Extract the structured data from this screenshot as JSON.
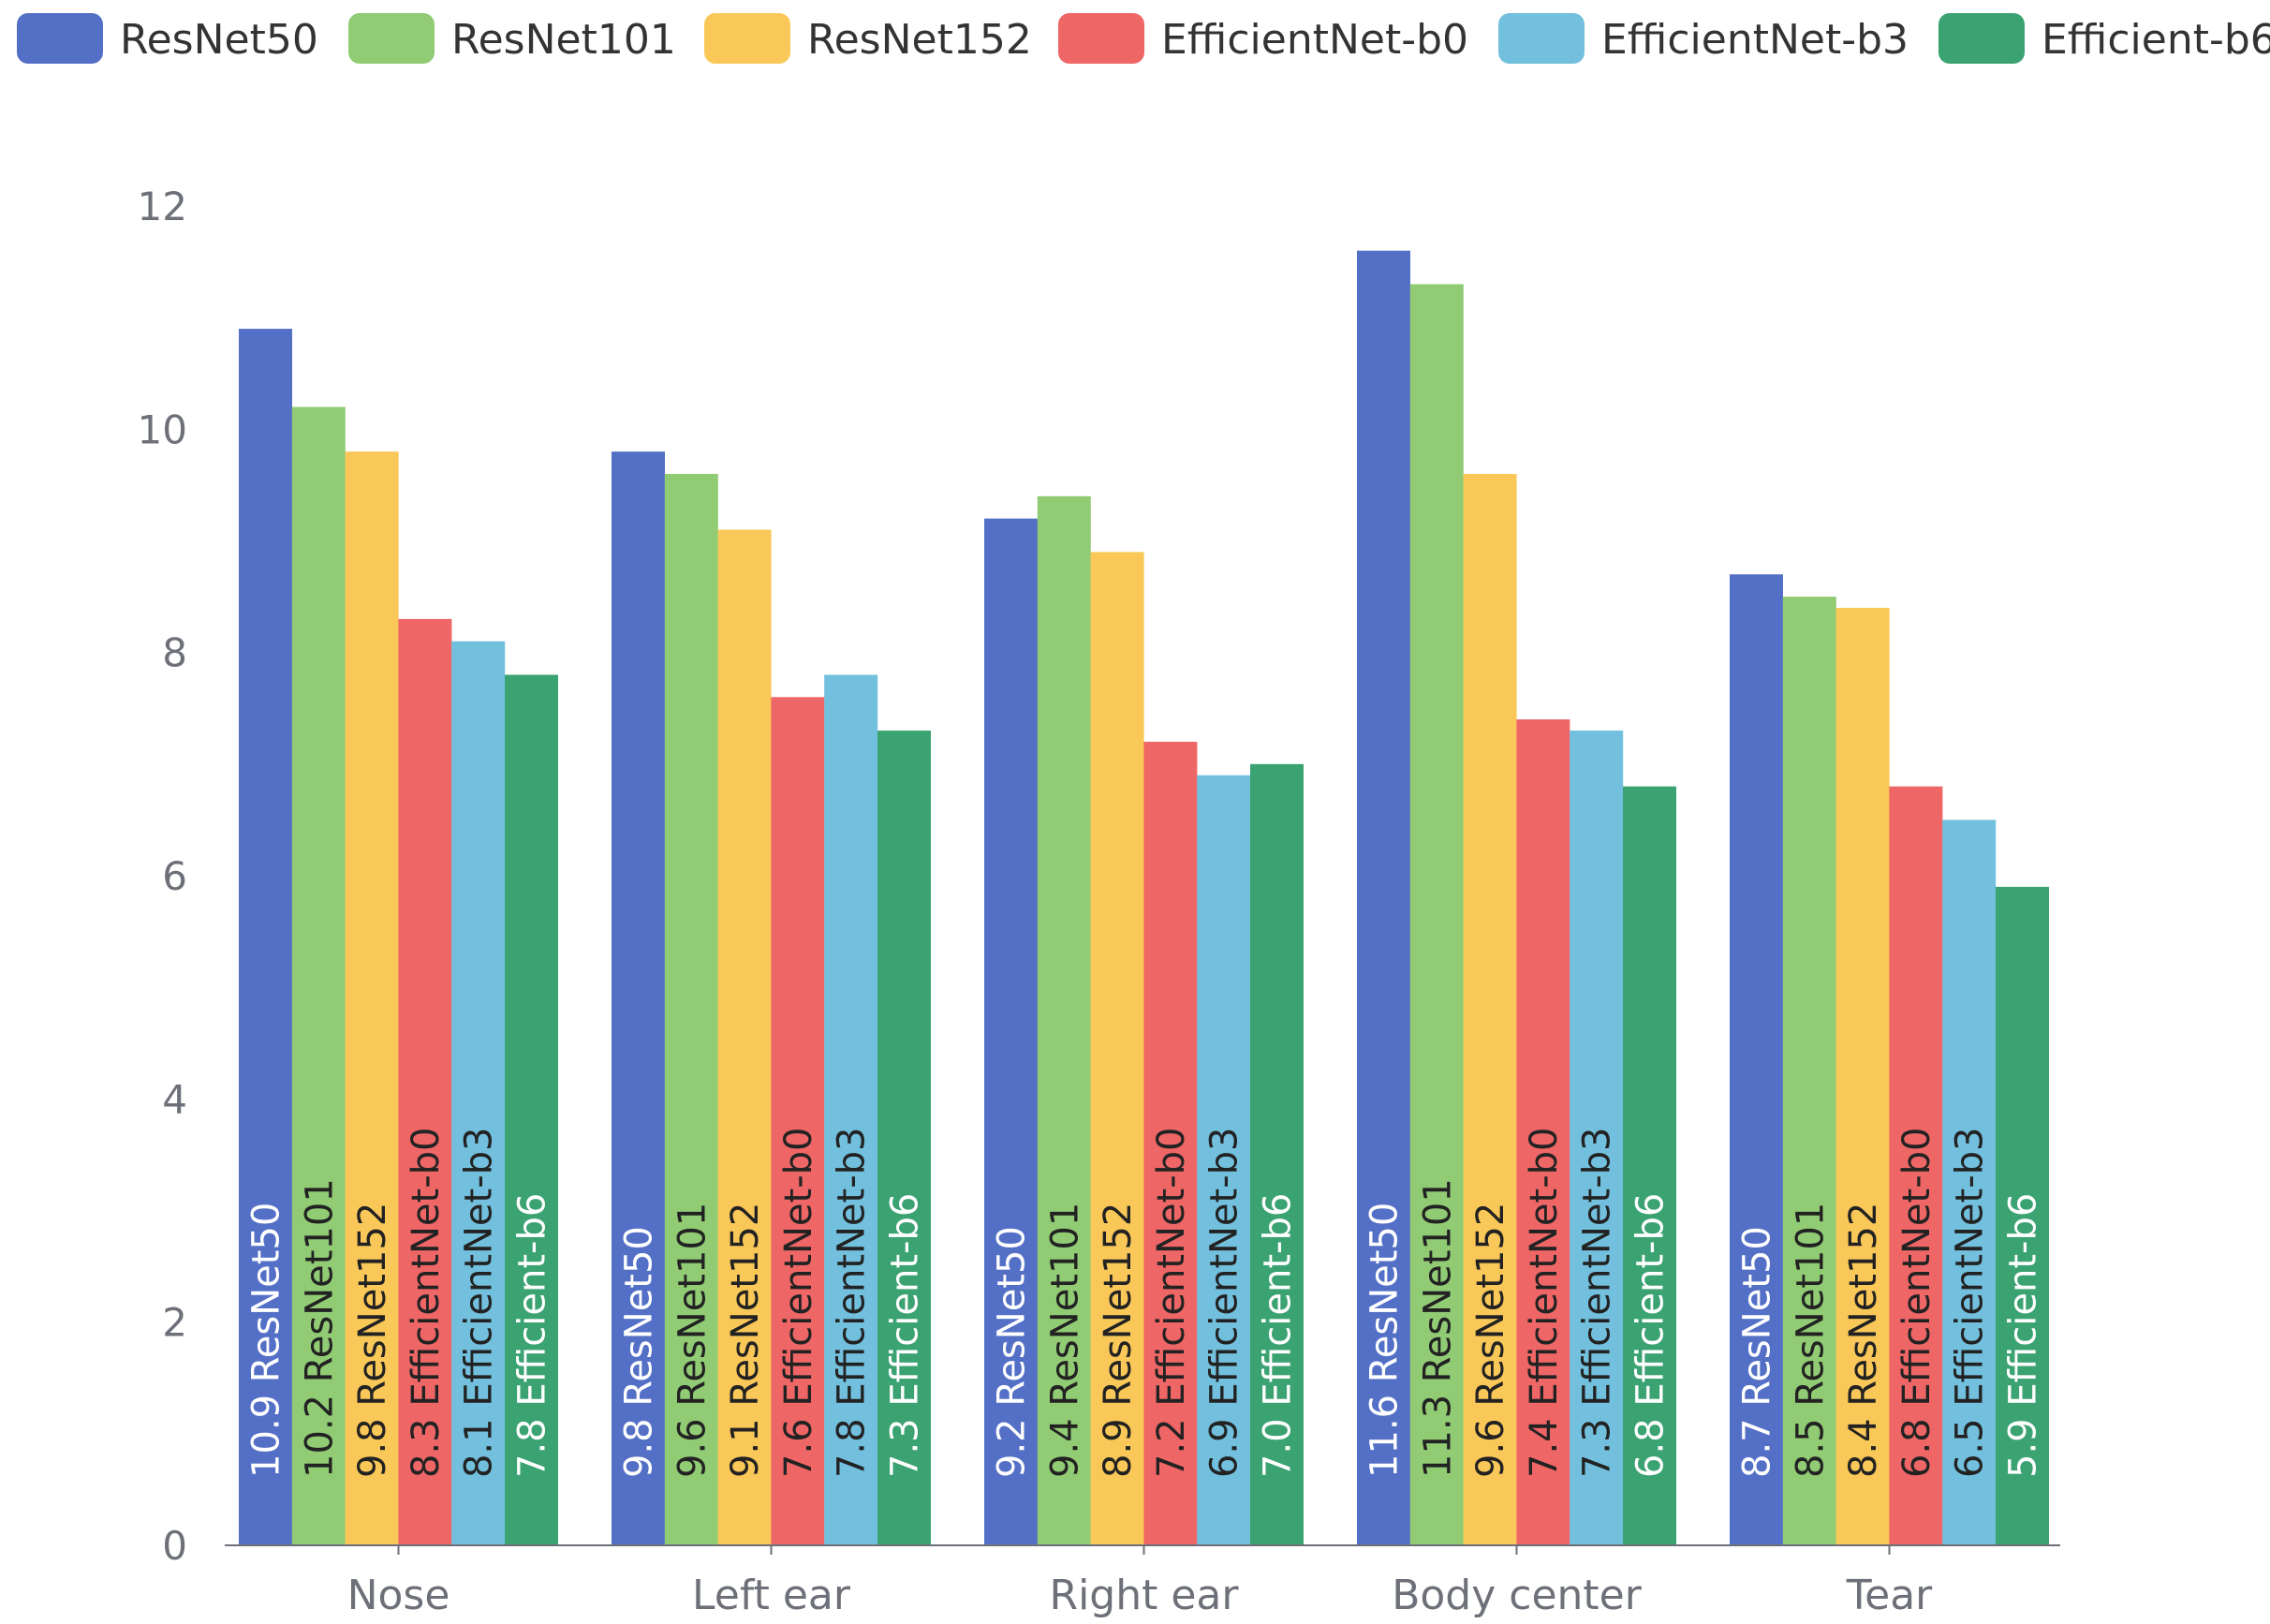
{
  "chart_data": {
    "type": "bar",
    "title": "",
    "xlabel": "",
    "ylabel": "",
    "ylim": [
      0,
      12
    ],
    "yticks": [
      0,
      2,
      4,
      6,
      8,
      10,
      12
    ],
    "grid": false,
    "legend_position": "top",
    "categories": [
      "Nose",
      "Left ear",
      "Right ear",
      "Body center",
      "Tear"
    ],
    "series": [
      {
        "name": "ResNet50",
        "color": "#5470c6",
        "label_color": "#ffffff",
        "values": [
          10.9,
          9.8,
          9.2,
          11.6,
          8.7
        ]
      },
      {
        "name": "ResNet101",
        "color": "#91cc75",
        "label_color": "#222222",
        "values": [
          10.2,
          9.6,
          9.4,
          11.3,
          8.5
        ]
      },
      {
        "name": "ResNet152",
        "color": "#fac858",
        "label_color": "#222222",
        "values": [
          9.8,
          9.1,
          8.9,
          9.6,
          8.4
        ]
      },
      {
        "name": "EfficientNet-b0",
        "color": "#ee6666",
        "label_color": "#222222",
        "values": [
          8.3,
          7.6,
          7.2,
          7.4,
          6.8
        ]
      },
      {
        "name": "EfficientNet-b3",
        "color": "#73c0de",
        "label_color": "#222222",
        "values": [
          8.1,
          7.8,
          6.9,
          7.3,
          6.5
        ]
      },
      {
        "name": "Efficient-b6",
        "color": "#3ba272",
        "label_color": "#ffffff",
        "values": [
          7.8,
          7.3,
          7.0,
          6.8,
          5.9
        ]
      }
    ]
  }
}
